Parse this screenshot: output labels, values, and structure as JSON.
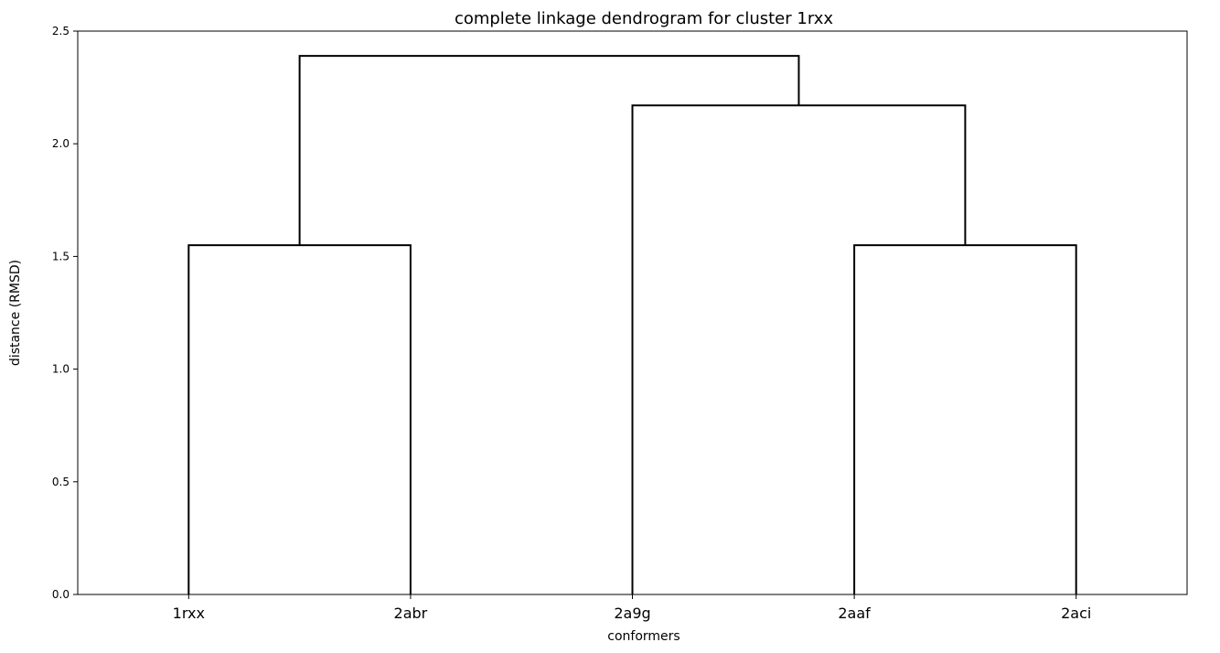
{
  "chart_data": {
    "type": "dendrogram",
    "title": "complete linkage dendrogram for cluster 1rxx",
    "xlabel": "conformers",
    "ylabel": "distance (RMSD)",
    "ylim": [
      0.0,
      2.5
    ],
    "yticks": [
      "0.0",
      "0.5",
      "1.0",
      "1.5",
      "2.0",
      "2.5"
    ],
    "leaves": [
      "1rxx",
      "2abr",
      "2a9g",
      "2aaf",
      "2aci"
    ],
    "merges": [
      {
        "left": "1rxx",
        "right": "2abr",
        "height": 1.55
      },
      {
        "left": "2aaf",
        "right": "2aci",
        "height": 1.55
      },
      {
        "left": "2a9g",
        "right": "2aaf+2aci",
        "height": 2.17
      },
      {
        "left": "1rxx+2abr",
        "right": "2a9g+2aaf+2aci",
        "height": 2.39
      }
    ],
    "grid": false,
    "line_color": "#000000"
  }
}
